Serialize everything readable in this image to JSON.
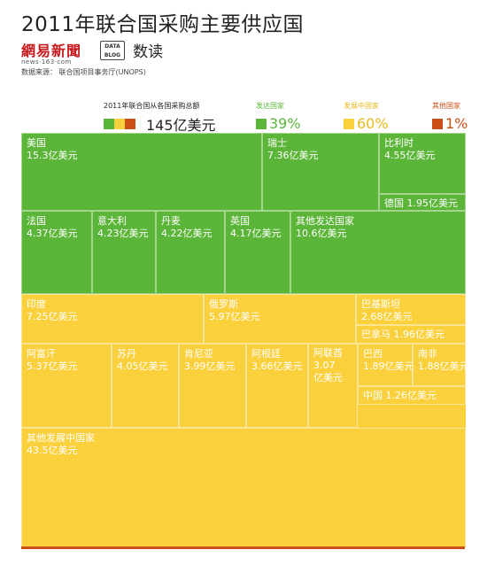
{
  "title": "2011年联合国采购主要供应国",
  "logos": {
    "netease_cn": "網易新聞",
    "netease_en": "news·163·com",
    "datablog_badge_line1": "DATA",
    "datablog_badge_line2": "BLOG",
    "datablog_name": "数读"
  },
  "source": "数据来源：  联合国项目事务厅(UNOPS)",
  "legend": {
    "total_caption": "2011年联合国从各国采购总额",
    "total_value": "145亿美元",
    "groups": [
      {
        "name": "发达国家",
        "pct": "39%",
        "color": "#5bb538"
      },
      {
        "name": "发展中国家",
        "pct": "60%",
        "color": "#fad03d"
      },
      {
        "name": "其他国家",
        "pct": "1%",
        "color": "#cb5018"
      }
    ]
  },
  "chart_data": {
    "type": "treemap",
    "title": "2011年联合国采购主要供应国",
    "unit": "亿美元",
    "total": 145,
    "groups": [
      {
        "name": "发达国家",
        "share": "39%",
        "color": "#5bb538",
        "items": [
          {
            "name": "美国",
            "value": 15.3,
            "label": "15.3亿美元"
          },
          {
            "name": "瑞士",
            "value": 7.36,
            "label": "7.36亿美元"
          },
          {
            "name": "比利时",
            "value": 4.55,
            "label": "4.55亿美元"
          },
          {
            "name": "德国",
            "value": 1.95,
            "label": "1.95亿美元"
          },
          {
            "name": "法国",
            "value": 4.37,
            "label": "4.37亿美元"
          },
          {
            "name": "意大利",
            "value": 4.23,
            "label": "4.23亿美元"
          },
          {
            "name": "丹麦",
            "value": 4.22,
            "label": "4.22亿美元"
          },
          {
            "name": "英国",
            "value": 4.17,
            "label": "4.17亿美元"
          },
          {
            "name": "其他发达国家",
            "value": 10.6,
            "label": "10.6亿美元"
          }
        ]
      },
      {
        "name": "发展中国家",
        "share": "60%",
        "color": "#fad03d",
        "items": [
          {
            "name": "印度",
            "value": 7.25,
            "label": "7.25亿美元"
          },
          {
            "name": "俄罗斯",
            "value": 5.97,
            "label": "5.97亿美元"
          },
          {
            "name": "巴基斯坦",
            "value": 2.68,
            "label": "2.68亿美元"
          },
          {
            "name": "巴拿马",
            "value": 1.96,
            "label": "1.96亿美元"
          },
          {
            "name": "阿富汗",
            "value": 5.37,
            "label": "5.37亿美元"
          },
          {
            "name": "苏丹",
            "value": 4.05,
            "label": "4.05亿美元"
          },
          {
            "name": "肯尼亚",
            "value": 3.99,
            "label": "3.99亿美元"
          },
          {
            "name": "阿根廷",
            "value": 3.66,
            "label": "3.66亿美元"
          },
          {
            "name": "阿联酋",
            "value": 3.07,
            "label": "3.07亿美元"
          },
          {
            "name": "巴西",
            "value": 1.89,
            "label": "1.89亿美元"
          },
          {
            "name": "南非",
            "value": 1.88,
            "label": "1.88亿美元"
          },
          {
            "name": "中国",
            "value": 1.26,
            "label": "1.26亿美元"
          },
          {
            "name": "其他发展中国家",
            "value": 43.5,
            "label": "43.5亿美元"
          }
        ]
      },
      {
        "name": "其他国家",
        "share": "1%",
        "color": "#cb5018",
        "items": []
      }
    ]
  }
}
